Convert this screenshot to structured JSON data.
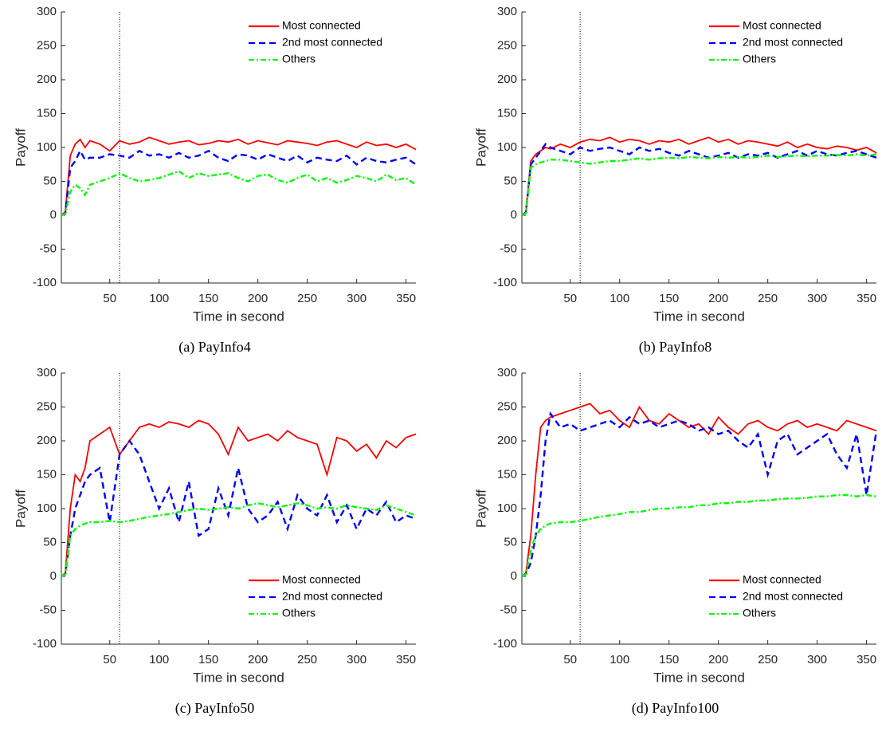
{
  "chart_data": [
    {
      "type": "line",
      "caption": "(a) PayInfo4",
      "xlabel": "Time in second",
      "ylabel": "Payoff",
      "xlim": [
        1,
        360
      ],
      "ylim": [
        -100,
        300
      ],
      "xticks": [
        50,
        100,
        150,
        200,
        250,
        300,
        350
      ],
      "yticks": [
        -100,
        -50,
        0,
        50,
        100,
        150,
        200,
        250,
        300
      ],
      "vline": 60,
      "legend": "top-right",
      "x": [
        1,
        5,
        10,
        15,
        20,
        25,
        30,
        40,
        50,
        60,
        70,
        80,
        90,
        100,
        110,
        120,
        130,
        140,
        150,
        160,
        170,
        180,
        190,
        200,
        210,
        220,
        230,
        240,
        250,
        260,
        270,
        280,
        290,
        300,
        310,
        320,
        330,
        340,
        350,
        360
      ],
      "series": [
        {
          "name": "Most connected",
          "color": "#ff0000",
          "style": "solid",
          "values": [
            0,
            5,
            88,
            105,
            112,
            100,
            110,
            105,
            95,
            110,
            105,
            108,
            115,
            110,
            105,
            108,
            110,
            104,
            106,
            110,
            108,
            112,
            105,
            110,
            107,
            104,
            110,
            108,
            106,
            103,
            108,
            110,
            105,
            100,
            108,
            103,
            105,
            100,
            105,
            97
          ]
        },
        {
          "name": "2nd most connected",
          "color": "#0000ff",
          "style": "dashed",
          "values": [
            0,
            3,
            70,
            80,
            95,
            82,
            85,
            85,
            90,
            88,
            85,
            95,
            88,
            90,
            85,
            92,
            85,
            88,
            95,
            85,
            80,
            90,
            88,
            82,
            90,
            85,
            80,
            88,
            78,
            85,
            82,
            80,
            88,
            75,
            85,
            80,
            78,
            82,
            85,
            75
          ]
        },
        {
          "name": "Others",
          "color": "#00ff00",
          "style": "dashdot",
          "values": [
            0,
            2,
            35,
            45,
            40,
            30,
            45,
            50,
            55,
            62,
            55,
            50,
            52,
            55,
            60,
            65,
            55,
            62,
            58,
            60,
            62,
            55,
            50,
            58,
            60,
            52,
            48,
            55,
            60,
            50,
            55,
            48,
            52,
            58,
            55,
            50,
            60,
            52,
            55,
            45
          ]
        }
      ]
    },
    {
      "type": "line",
      "caption": "(b) PayInfo8",
      "xlabel": "Time in second",
      "ylabel": "Payoff",
      "xlim": [
        1,
        360
      ],
      "ylim": [
        -100,
        300
      ],
      "xticks": [
        50,
        100,
        150,
        200,
        250,
        300,
        350
      ],
      "yticks": [
        -100,
        -50,
        0,
        50,
        100,
        150,
        200,
        250,
        300
      ],
      "vline": 60,
      "legend": "top-right",
      "x": [
        1,
        5,
        10,
        15,
        20,
        25,
        30,
        40,
        50,
        60,
        70,
        80,
        90,
        100,
        110,
        120,
        130,
        140,
        150,
        160,
        170,
        180,
        190,
        200,
        210,
        220,
        230,
        240,
        250,
        260,
        270,
        280,
        290,
        300,
        310,
        320,
        330,
        340,
        350,
        360
      ],
      "series": [
        {
          "name": "Most connected",
          "color": "#ff0000",
          "style": "solid",
          "values": [
            0,
            5,
            80,
            90,
            95,
            100,
            98,
            105,
            100,
            108,
            112,
            110,
            115,
            108,
            112,
            110,
            105,
            110,
            108,
            112,
            105,
            110,
            115,
            108,
            112,
            105,
            110,
            108,
            105,
            102,
            108,
            100,
            105,
            100,
            98,
            102,
            100,
            96,
            100,
            92
          ]
        },
        {
          "name": "2nd most connected",
          "color": "#0000ff",
          "style": "dashed",
          "values": [
            0,
            4,
            75,
            85,
            95,
            105,
            100,
            95,
            90,
            100,
            95,
            98,
            100,
            95,
            90,
            100,
            95,
            98,
            92,
            88,
            95,
            90,
            85,
            88,
            92,
            85,
            90,
            88,
            92,
            85,
            90,
            95,
            88,
            95,
            90,
            88,
            92,
            95,
            90,
            85
          ]
        },
        {
          "name": "Others",
          "color": "#00ff00",
          "style": "dashdot",
          "values": [
            0,
            3,
            70,
            75,
            78,
            80,
            82,
            82,
            80,
            78,
            76,
            78,
            80,
            80,
            82,
            84,
            82,
            84,
            85,
            84,
            86,
            85,
            84,
            86,
            85,
            86,
            85,
            86,
            88,
            86,
            87,
            88,
            87,
            88,
            88,
            89,
            88,
            90,
            88,
            90
          ]
        }
      ]
    },
    {
      "type": "line",
      "caption": "(c) PayInfo50",
      "xlabel": "Time in second",
      "ylabel": "Payoff",
      "xlim": [
        1,
        360
      ],
      "ylim": [
        -100,
        300
      ],
      "xticks": [
        50,
        100,
        150,
        200,
        250,
        300,
        350
      ],
      "yticks": [
        -100,
        -50,
        0,
        50,
        100,
        150,
        200,
        250,
        300
      ],
      "vline": 60,
      "legend": "bottom-right",
      "x": [
        1,
        5,
        10,
        15,
        20,
        25,
        30,
        40,
        50,
        60,
        70,
        80,
        90,
        100,
        110,
        120,
        130,
        140,
        150,
        160,
        170,
        180,
        190,
        200,
        210,
        220,
        230,
        240,
        250,
        260,
        270,
        280,
        290,
        300,
        310,
        320,
        330,
        340,
        350,
        360
      ],
      "series": [
        {
          "name": "Most connected",
          "color": "#ff0000",
          "style": "solid",
          "values": [
            0,
            5,
            100,
            150,
            140,
            160,
            200,
            210,
            220,
            180,
            200,
            220,
            225,
            220,
            228,
            225,
            220,
            230,
            225,
            210,
            180,
            220,
            200,
            205,
            210,
            200,
            215,
            205,
            200,
            195,
            150,
            205,
            200,
            185,
            195,
            175,
            200,
            190,
            205,
            210
          ]
        },
        {
          "name": "2nd most connected",
          "color": "#0000ff",
          "style": "dashed",
          "values": [
            0,
            3,
            60,
            100,
            120,
            140,
            150,
            160,
            80,
            180,
            200,
            180,
            140,
            100,
            130,
            80,
            140,
            60,
            70,
            130,
            90,
            160,
            100,
            80,
            90,
            110,
            70,
            120,
            100,
            90,
            120,
            80,
            105,
            70,
            100,
            90,
            110,
            80,
            90,
            85
          ]
        },
        {
          "name": "Others",
          "color": "#00ff00",
          "style": "dashdot",
          "values": [
            0,
            3,
            60,
            70,
            75,
            78,
            80,
            80,
            82,
            80,
            82,
            85,
            88,
            90,
            92,
            95,
            98,
            100,
            98,
            100,
            102,
            100,
            105,
            108,
            105,
            102,
            105,
            108,
            105,
            100,
            102,
            100,
            105,
            102,
            100,
            98,
            105,
            100,
            95,
            90
          ]
        }
      ]
    },
    {
      "type": "line",
      "caption": "(d) PayInfo100",
      "xlabel": "Time in second",
      "ylabel": "Payoff",
      "xlim": [
        1,
        360
      ],
      "ylim": [
        -100,
        300
      ],
      "xticks": [
        50,
        100,
        150,
        200,
        250,
        300,
        350
      ],
      "yticks": [
        -100,
        -50,
        0,
        50,
        100,
        150,
        200,
        250,
        300
      ],
      "vline": 60,
      "legend": "bottom-right",
      "x": [
        1,
        5,
        10,
        15,
        20,
        25,
        30,
        40,
        50,
        60,
        70,
        80,
        90,
        100,
        110,
        120,
        130,
        140,
        150,
        160,
        170,
        180,
        190,
        200,
        210,
        220,
        230,
        240,
        250,
        260,
        270,
        280,
        290,
        300,
        310,
        320,
        330,
        340,
        350,
        360
      ],
      "series": [
        {
          "name": "Most connected",
          "color": "#ff0000",
          "style": "solid",
          "values": [
            0,
            5,
            60,
            150,
            220,
            230,
            235,
            240,
            245,
            250,
            255,
            240,
            245,
            230,
            220,
            250,
            230,
            225,
            240,
            230,
            220,
            225,
            210,
            235,
            220,
            210,
            225,
            230,
            220,
            215,
            225,
            230,
            220,
            225,
            220,
            215,
            230,
            225,
            220,
            215
          ]
        },
        {
          "name": "2nd most connected",
          "color": "#0000ff",
          "style": "dashed",
          "values": [
            0,
            3,
            20,
            60,
            120,
            200,
            240,
            220,
            225,
            215,
            220,
            225,
            230,
            220,
            235,
            225,
            230,
            220,
            225,
            230,
            225,
            215,
            220,
            210,
            215,
            200,
            190,
            210,
            150,
            200,
            210,
            180,
            190,
            200,
            210,
            180,
            160,
            210,
            120,
            215
          ]
        },
        {
          "name": "Others",
          "color": "#00ff00",
          "style": "dashdot",
          "values": [
            0,
            3,
            40,
            60,
            70,
            75,
            78,
            80,
            80,
            82,
            85,
            88,
            90,
            92,
            95,
            95,
            98,
            100,
            100,
            102,
            102,
            105,
            105,
            108,
            108,
            110,
            110,
            112,
            112,
            114,
            115,
            115,
            116,
            118,
            118,
            120,
            120,
            118,
            120,
            118
          ]
        }
      ]
    }
  ]
}
